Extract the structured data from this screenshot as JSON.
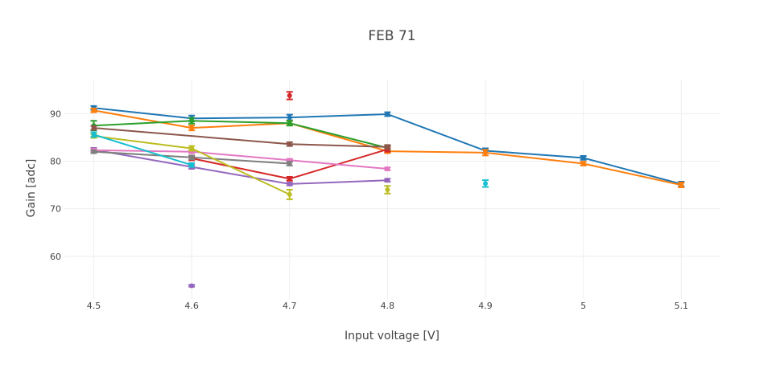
{
  "chart_data": {
    "type": "scatter",
    "title": "FEB 71",
    "xlabel": "Input voltage [V]",
    "ylabel": "Gain [adc]",
    "xlim": [
      4.47,
      5.14
    ],
    "ylim": [
      51,
      97
    ],
    "x_ticks": [
      4.5,
      4.6,
      4.7,
      4.8,
      4.9,
      5,
      5.1
    ],
    "x_tick_labels": [
      "4.5",
      "4.6",
      "4.7",
      "4.8",
      "4.9",
      "5",
      "5.1"
    ],
    "y_ticks": [
      60,
      70,
      80,
      90
    ],
    "y_tick_labels": [
      "60",
      "70",
      "80",
      "90"
    ],
    "grid": true,
    "legend": false,
    "series": [
      {
        "color": "#1f77b4",
        "x": [
          4.5,
          4.6,
          4.7,
          4.8,
          4.9,
          5.0,
          5.1
        ],
        "y": [
          91.2,
          89.0,
          89.2,
          89.9,
          82.2,
          80.7,
          75.2
        ],
        "err": [
          0.4,
          0.6,
          0.6,
          0.4,
          0.5,
          0.4,
          0.5
        ]
      },
      {
        "color": "#ff7f0e",
        "x": [
          4.5,
          4.6,
          4.7,
          4.8,
          4.9,
          5.0,
          5.1
        ],
        "y": [
          90.7,
          87.0,
          88.0,
          82.1,
          81.8,
          79.5,
          75.0
        ],
        "err": [
          0.4,
          0.5,
          0.5,
          0.4,
          0.6,
          0.4,
          0.5
        ]
      },
      {
        "color": "#2ca02c",
        "x": [
          4.5,
          4.6,
          4.7,
          4.8
        ],
        "y": [
          87.5,
          88.5,
          88.0,
          82.8
        ],
        "err": [
          1.0,
          0.6,
          0.5,
          0.4
        ]
      },
      {
        "color": "#d62728",
        "x": [
          4.7
        ],
        "y": [
          93.8
        ],
        "err": [
          0.8
        ],
        "lines": false
      },
      {
        "color": "#d62728",
        "x": [
          4.6,
          4.7,
          4.8
        ],
        "y": [
          80.6,
          76.3,
          82.5
        ],
        "err": [
          0.4,
          0.4,
          0.5
        ]
      },
      {
        "color": "#9467bd",
        "x": [
          4.5,
          4.6,
          4.7,
          4.8
        ],
        "y": [
          82.4,
          78.8,
          75.2,
          76.0
        ],
        "err": [
          0.4,
          0.4,
          0.3,
          0.3
        ]
      },
      {
        "color": "#9467bd",
        "x": [
          4.6
        ],
        "y": [
          53.8
        ],
        "err": [
          0.2
        ],
        "lines": false
      },
      {
        "color": "#8c564b",
        "x": [
          4.5,
          4.7,
          4.8
        ],
        "y": [
          87.0,
          83.6,
          83.0
        ],
        "err": [
          0.4,
          0.4,
          0.4
        ]
      },
      {
        "color": "#e377c2",
        "x": [
          4.5,
          4.6,
          4.7,
          4.8
        ],
        "y": [
          82.3,
          82.0,
          80.2,
          78.4
        ],
        "err": [
          0.3,
          0.3,
          0.3,
          0.3
        ]
      },
      {
        "color": "#7f7f7f",
        "x": [
          4.5,
          4.6,
          4.7
        ],
        "y": [
          82.0,
          80.8,
          79.5
        ],
        "err": [
          0.3,
          0.4,
          0.4
        ]
      },
      {
        "color": "#bcbd22",
        "x": [
          4.5,
          4.6,
          4.7
        ],
        "y": [
          85.3,
          82.7,
          73.0
        ],
        "err": [
          0.4,
          0.5,
          1.0
        ]
      },
      {
        "color": "#bcbd22",
        "x": [
          4.8
        ],
        "y": [
          74.0
        ],
        "err": [
          0.8
        ],
        "lines": false
      },
      {
        "color": "#17becf",
        "x": [
          4.5,
          4.6
        ],
        "y": [
          85.6,
          79.2
        ],
        "err": [
          0.5,
          0.4
        ]
      },
      {
        "color": "#17becf",
        "x": [
          4.9
        ],
        "y": [
          75.3
        ],
        "err": [
          0.7
        ],
        "lines": false
      }
    ]
  }
}
